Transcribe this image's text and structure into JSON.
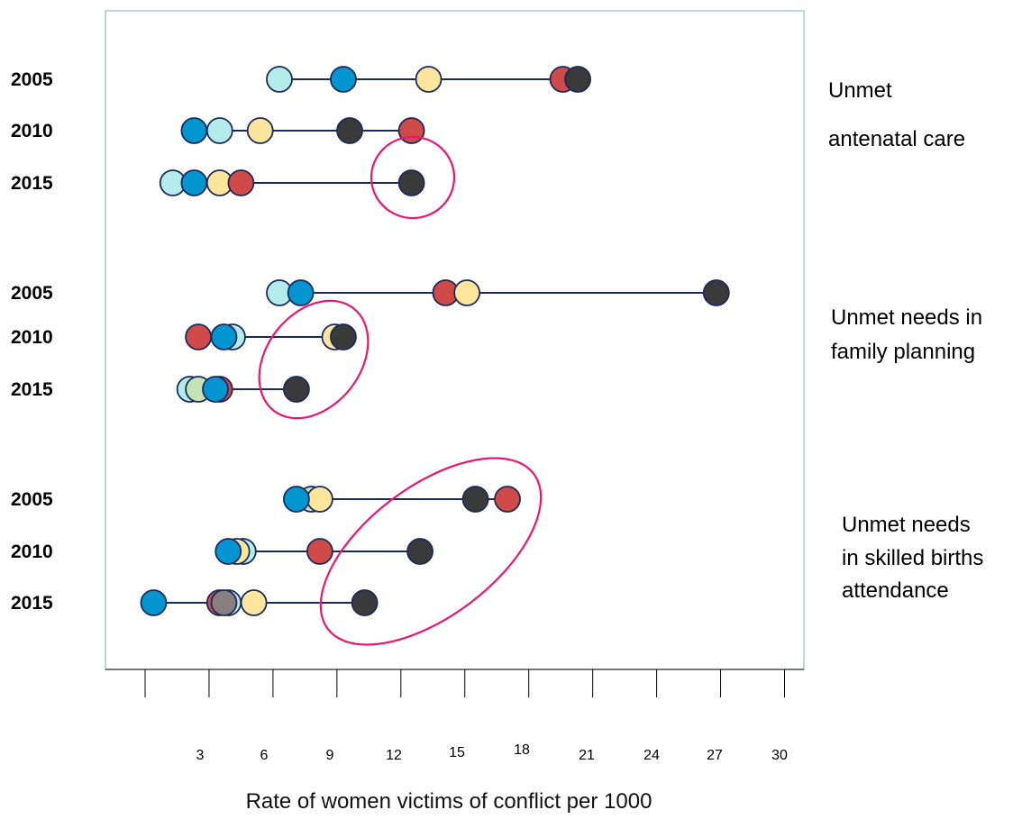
{
  "chart_data": {
    "type": "dot-range",
    "title": "",
    "xlabel": "Rate of women victims of conflict per 1000",
    "ylabel": "",
    "x_ticks": [
      3,
      6,
      9,
      12,
      15,
      18,
      21,
      24,
      27,
      30
    ],
    "x_tick_labels": [
      "3",
      "6",
      "9",
      "12",
      "15",
      "18",
      "21",
      "24",
      "27",
      "30"
    ],
    "xlim": [
      0,
      30
    ],
    "grid": false,
    "legend": "none",
    "category_colors": {
      "light-teal": "#b4ecec",
      "blue": "#0395cf",
      "yellow": "#fde59c",
      "red": "#d04a4a",
      "dark": "#3a3a3a",
      "light-green": "#c6e3b5",
      "grey": "#8a7f7f"
    },
    "circle_colors": [
      "#ec1672"
    ],
    "groups": [
      {
        "label_lines": [
          "Unmet",
          "antenatal care"
        ],
        "rows": [
          {
            "year": "2005",
            "points": [
              {
                "color": "light-teal",
                "x": 6.3
              },
              {
                "color": "blue",
                "x": 9.3
              },
              {
                "color": "yellow",
                "x": 13.3
              },
              {
                "color": "red",
                "x": 19.6
              },
              {
                "color": "dark",
                "x": 20.3
              }
            ]
          },
          {
            "year": "2010",
            "points": [
              {
                "color": "blue",
                "x": 2.3
              },
              {
                "color": "light-teal",
                "x": 3.5
              },
              {
                "color": "yellow",
                "x": 5.4
              },
              {
                "color": "dark",
                "x": 9.6
              },
              {
                "color": "red",
                "x": 12.5
              }
            ]
          },
          {
            "year": "2015",
            "points": [
              {
                "color": "light-teal",
                "x": 1.3
              },
              {
                "color": "blue",
                "x": 2.3
              },
              {
                "color": "yellow",
                "x": 3.5
              },
              {
                "color": "red",
                "x": 4.5
              },
              {
                "color": "dark",
                "x": 12.5
              }
            ]
          }
        ]
      },
      {
        "label_lines": [
          "Unmet needs in",
          "family planning"
        ],
        "rows": [
          {
            "year": "2005",
            "points": [
              {
                "color": "light-teal",
                "x": 6.3
              },
              {
                "color": "blue",
                "x": 7.3
              },
              {
                "color": "red",
                "x": 14.1
              },
              {
                "color": "yellow",
                "x": 15.1
              },
              {
                "color": "dark",
                "x": 26.8
              }
            ]
          },
          {
            "year": "2010",
            "points": [
              {
                "color": "red",
                "x": 2.5
              },
              {
                "color": "light-teal",
                "x": 4.1
              },
              {
                "color": "blue",
                "x": 3.7
              },
              {
                "color": "yellow",
                "x": 8.9
              },
              {
                "color": "dark",
                "x": 9.3
              }
            ]
          },
          {
            "year": "2015",
            "points": [
              {
                "color": "light-teal",
                "x": 2.1
              },
              {
                "color": "light-green",
                "x": 2.5
              },
              {
                "color": "red",
                "x": 3.5
              },
              {
                "color": "blue",
                "x": 3.3
              },
              {
                "color": "dark",
                "x": 7.1
              }
            ]
          }
        ]
      },
      {
        "label_lines": [
          "Unmet needs",
          "in skilled births",
          "attendance"
        ],
        "rows": [
          {
            "year": "2005",
            "points": [
              {
                "color": "light-green",
                "x": 7.8
              },
              {
                "color": "yellow",
                "x": 8.2
              },
              {
                "color": "blue",
                "x": 7.1
              },
              {
                "color": "dark",
                "x": 15.5
              },
              {
                "color": "red",
                "x": 17.0
              }
            ]
          },
          {
            "year": "2010",
            "points": [
              {
                "color": "light-teal",
                "x": 4.6
              },
              {
                "color": "yellow",
                "x": 4.3
              },
              {
                "color": "blue",
                "x": 3.9
              },
              {
                "color": "red",
                "x": 8.2
              },
              {
                "color": "dark",
                "x": 12.9
              }
            ]
          },
          {
            "year": "2015",
            "points": [
              {
                "color": "blue",
                "x": 0.4
              },
              {
                "color": "red",
                "x": 3.5
              },
              {
                "color": "light-teal",
                "x": 3.9
              },
              {
                "color": "grey",
                "x": 3.7
              },
              {
                "color": "yellow",
                "x": 5.1
              },
              {
                "color": "dark",
                "x": 10.3
              }
            ]
          }
        ]
      }
    ]
  }
}
